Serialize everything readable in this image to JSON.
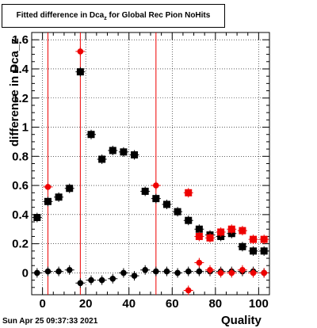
{
  "title": {
    "main": "Fitted difference in Dca",
    "sub": "z",
    "tail": " for Global Rec Pion NoHits"
  },
  "footer": {
    "date": "Sun Apr 25 09:37:33 2021"
  },
  "colors": {
    "black_series": "#000000",
    "red_series": "#ee0000",
    "axes": "#000000"
  },
  "chart_data": {
    "type": "scatter",
    "xlabel": "Quality",
    "ylabel": "difference in Dca_z",
    "xlim": [
      -5,
      105
    ],
    "ylim": [
      -0.15,
      1.65
    ],
    "x_ticks": [
      0,
      20,
      40,
      60,
      80,
      100
    ],
    "y_ticks": [
      0,
      0.2,
      0.4,
      0.6,
      0.8,
      1,
      1.2,
      1.4,
      1.6
    ],
    "y_tick_labels": [
      "0",
      "0.2",
      "0.4",
      "0.6",
      "0.8",
      "1",
      "1.2",
      "1.4",
      "1.6"
    ],
    "grid": true,
    "vertical_lines": [
      2.5,
      17.5,
      52.5
    ],
    "series": [
      {
        "marker": "square",
        "color": "#000000",
        "x": [
          -2.5,
          2.5,
          7.5,
          12.5,
          17.5,
          22.5,
          27.5,
          32.5,
          37.5,
          42.5,
          47.5,
          52.5,
          57.5,
          62.5,
          67.5,
          72.5,
          77.5,
          82.5,
          87.5,
          92.5,
          97.5,
          102.5
        ],
        "y": [
          0.38,
          0.49,
          0.52,
          0.58,
          1.38,
          0.95,
          0.78,
          0.84,
          0.83,
          0.81,
          0.56,
          0.51,
          0.47,
          0.42,
          0.36,
          0.3,
          0.26,
          0.25,
          0.27,
          0.18,
          0.15,
          0.15
        ]
      },
      {
        "marker": "circle",
        "color": "#000000",
        "x": [
          -2.5,
          2.5,
          7.5,
          12.5,
          17.5,
          22.5,
          27.5,
          32.5,
          37.5,
          42.5,
          47.5,
          52.5,
          57.5,
          62.5,
          67.5,
          72.5,
          77.5,
          82.5,
          87.5,
          92.5,
          97.5,
          102.5
        ],
        "y": [
          0.0,
          0.01,
          0.01,
          0.02,
          -0.07,
          -0.05,
          -0.05,
          -0.04,
          0.0,
          -0.02,
          0.02,
          0.01,
          0.01,
          0.0,
          0.01,
          0.01,
          0.01,
          0.01,
          0.01,
          0.01,
          0.01,
          0.0
        ]
      },
      {
        "marker": "circle",
        "color": "#ee0000",
        "x": [
          2.5,
          17.5,
          52.5,
          67.5,
          72.5,
          77.5,
          82.5,
          87.5,
          92.5,
          97.5,
          102.5
        ],
        "y": [
          0.59,
          1.52,
          0.6,
          -0.12,
          0.07,
          0.02,
          0.0,
          0.0,
          0.02,
          0.0,
          0.0
        ]
      },
      {
        "marker": "square",
        "color": "#ee0000",
        "x": [
          67.5,
          72.5,
          77.5,
          82.5,
          87.5,
          92.5,
          97.5,
          102.5
        ],
        "y": [
          0.55,
          0.25,
          0.24,
          0.28,
          0.3,
          0.29,
          0.23,
          0.23
        ]
      }
    ]
  }
}
